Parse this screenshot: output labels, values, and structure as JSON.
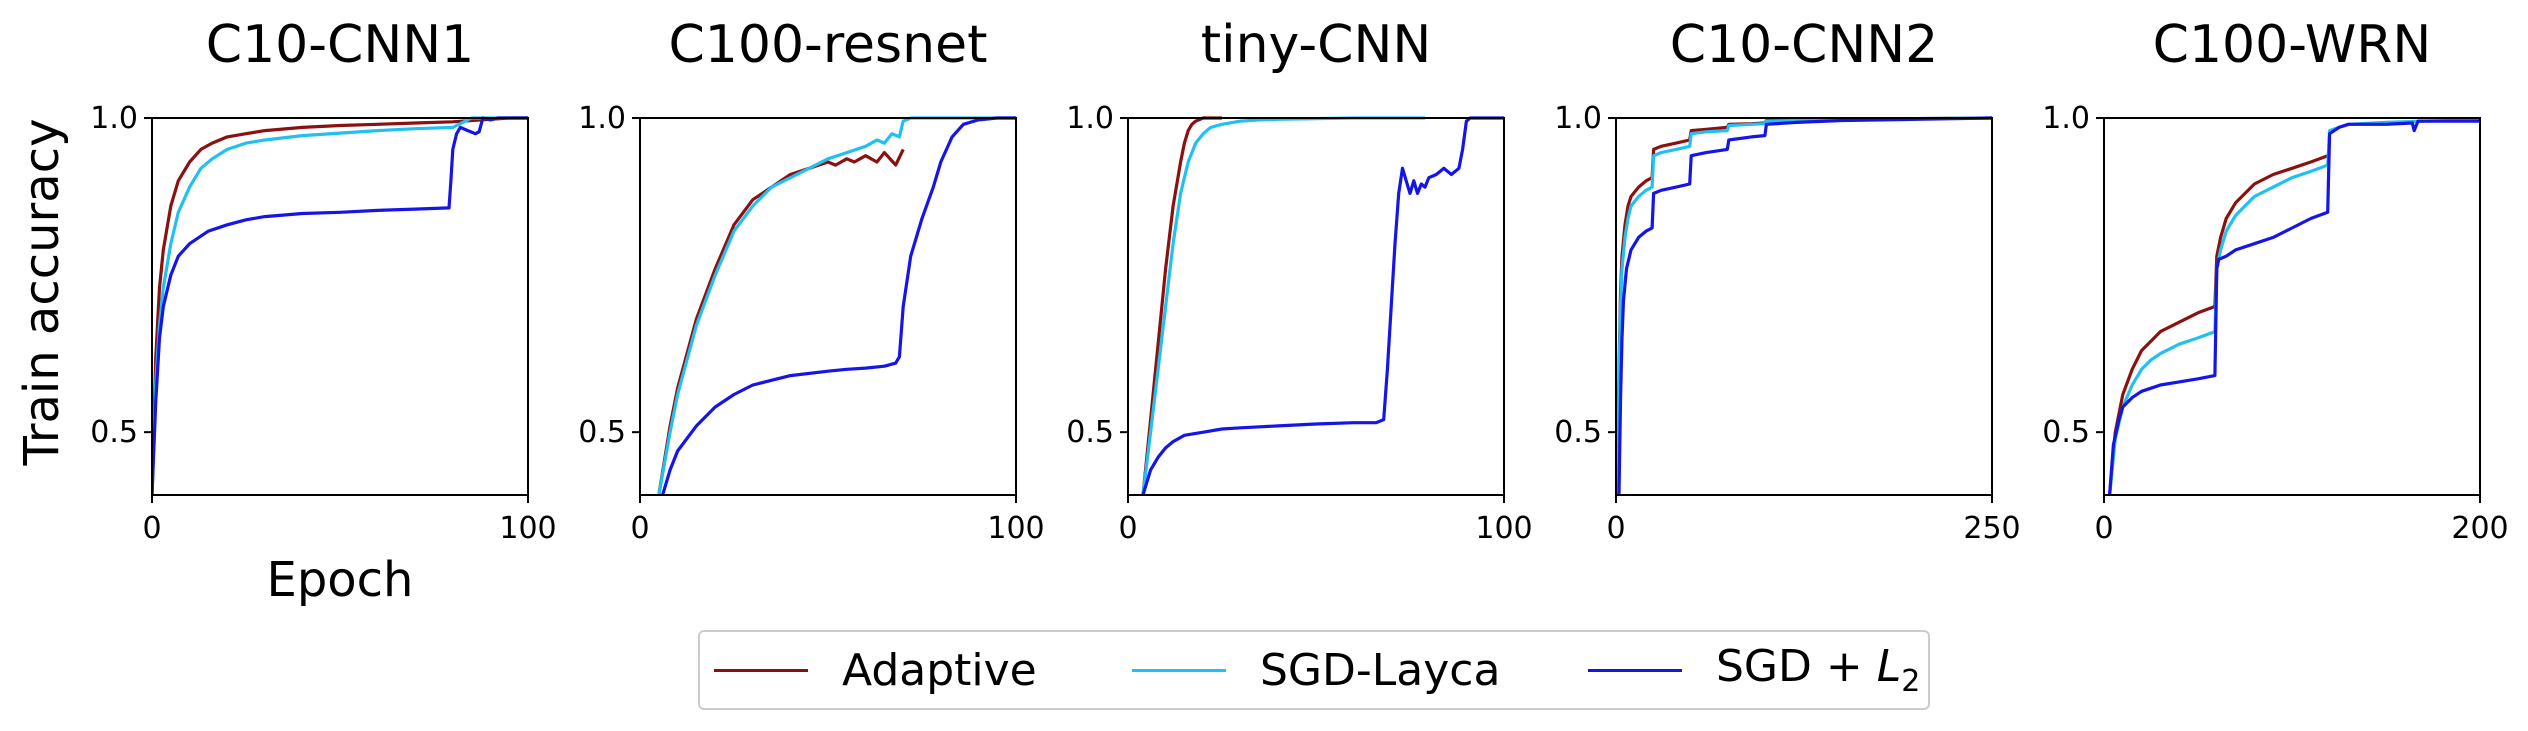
{
  "figure": {
    "ylabel": "Train accuracy",
    "xlabel": "Epoch"
  },
  "legend": [
    {
      "label": "Adaptive",
      "color": "#8b1111"
    },
    {
      "label": "SGD-Layca",
      "color": "#22c0f0"
    },
    {
      "label": "SGD + L",
      "sub": "2",
      "color": "#1515e8"
    }
  ],
  "chart_data": [
    {
      "type": "line",
      "title": "C10-CNN1",
      "xlim": [
        0,
        100
      ],
      "ylim": [
        0.4,
        1.0
      ],
      "xticks": [
        "0",
        "100"
      ],
      "yticks": [
        "0.5",
        "1.0"
      ],
      "ytick_values": [
        0.5,
        1.0
      ],
      "xtick_values": [
        0,
        100
      ],
      "series": [
        {
          "name": "Adaptive",
          "color": "#8b1111",
          "x": [
            0,
            1,
            2,
            3,
            5,
            7,
            10,
            13,
            16,
            20,
            25,
            30,
            40,
            50,
            60,
            70,
            80,
            85,
            90,
            95,
            100
          ],
          "y": [
            0.4,
            0.62,
            0.73,
            0.79,
            0.86,
            0.9,
            0.93,
            0.95,
            0.96,
            0.97,
            0.975,
            0.98,
            0.985,
            0.988,
            0.99,
            0.992,
            0.994,
            0.996,
            0.998,
            1.0,
            1.0
          ]
        },
        {
          "name": "SGD-Layca",
          "color": "#22c0f0",
          "x": [
            0,
            1,
            2,
            3,
            5,
            7,
            10,
            13,
            16,
            20,
            25,
            30,
            40,
            50,
            60,
            70,
            80,
            85,
            90,
            100
          ],
          "y": [
            0.4,
            0.58,
            0.67,
            0.73,
            0.8,
            0.85,
            0.89,
            0.92,
            0.935,
            0.95,
            0.96,
            0.965,
            0.972,
            0.976,
            0.98,
            0.983,
            0.985,
            1.0,
            1.0,
            1.0
          ]
        },
        {
          "name": "SGD + L2",
          "color": "#1515e8",
          "x": [
            0,
            1,
            2,
            3,
            5,
            7,
            10,
            15,
            20,
            25,
            30,
            40,
            50,
            60,
            70,
            79,
            79.5,
            80,
            81,
            82,
            84,
            86,
            87,
            88,
            90,
            92,
            95,
            100
          ],
          "y": [
            0.4,
            0.55,
            0.65,
            0.7,
            0.75,
            0.78,
            0.8,
            0.82,
            0.83,
            0.838,
            0.843,
            0.848,
            0.85,
            0.853,
            0.855,
            0.857,
            0.9,
            0.95,
            0.975,
            0.985,
            0.98,
            0.975,
            0.978,
            1.0,
            0.997,
            1.0,
            1.0,
            1.0
          ]
        }
      ]
    },
    {
      "type": "line",
      "title": "C100-resnet",
      "xlim": [
        0,
        100
      ],
      "ylim": [
        0.4,
        1.0
      ],
      "xticks": [
        "0",
        "100"
      ],
      "yticks": [
        "0.5",
        "1.0"
      ],
      "ytick_values": [
        0.5,
        1.0
      ],
      "xtick_values": [
        0,
        100
      ],
      "series": [
        {
          "name": "Adaptive",
          "color": "#8b1111",
          "x": [
            5,
            8,
            10,
            15,
            20,
            25,
            30,
            35,
            40,
            45,
            50,
            52,
            55,
            57,
            60,
            63,
            65,
            68,
            70
          ],
          "y": [
            0.4,
            0.51,
            0.57,
            0.68,
            0.76,
            0.83,
            0.87,
            0.89,
            0.91,
            0.92,
            0.93,
            0.925,
            0.935,
            0.93,
            0.94,
            0.93,
            0.945,
            0.925,
            0.95
          ]
        },
        {
          "name": "SGD-Layca",
          "color": "#22c0f0",
          "x": [
            5,
            8,
            10,
            15,
            20,
            25,
            30,
            35,
            40,
            45,
            50,
            55,
            60,
            63,
            65,
            67,
            69,
            70,
            72,
            75,
            80,
            90,
            100
          ],
          "y": [
            0.4,
            0.5,
            0.56,
            0.67,
            0.75,
            0.82,
            0.86,
            0.89,
            0.905,
            0.92,
            0.935,
            0.945,
            0.955,
            0.965,
            0.96,
            0.975,
            0.97,
            0.995,
            1.0,
            1.0,
            1.0,
            1.0,
            1.0
          ]
        },
        {
          "name": "SGD + L2",
          "color": "#1515e8",
          "x": [
            6,
            8,
            10,
            15,
            20,
            25,
            30,
            40,
            50,
            55,
            60,
            65,
            68,
            69,
            70,
            72,
            75,
            78,
            80,
            83,
            86,
            90,
            95,
            100
          ],
          "y": [
            0.4,
            0.44,
            0.47,
            0.51,
            0.54,
            0.56,
            0.575,
            0.59,
            0.597,
            0.6,
            0.602,
            0.605,
            0.61,
            0.62,
            0.7,
            0.78,
            0.84,
            0.89,
            0.93,
            0.97,
            0.99,
            0.997,
            1.0,
            1.0
          ]
        }
      ]
    },
    {
      "type": "line",
      "title": "tiny-CNN",
      "xlim": [
        0,
        100
      ],
      "ylim": [
        0.4,
        1.0
      ],
      "xticks": [
        "0",
        "100"
      ],
      "yticks": [
        "0.5",
        "1.0"
      ],
      "ytick_values": [
        0.5,
        1.0
      ],
      "xtick_values": [
        0,
        100
      ],
      "series": [
        {
          "name": "Adaptive",
          "color": "#8b1111",
          "x": [
            4,
            6,
            8,
            10,
            12,
            14,
            15,
            16,
            17,
            18,
            20,
            25
          ],
          "y": [
            0.4,
            0.52,
            0.64,
            0.76,
            0.86,
            0.93,
            0.96,
            0.98,
            0.99,
            0.995,
            1.0,
            1.0
          ]
        },
        {
          "name": "SGD-Layca",
          "color": "#22c0f0",
          "x": [
            4,
            6,
            8,
            10,
            12,
            14,
            16,
            18,
            20,
            22,
            25,
            30,
            35,
            40,
            50,
            60,
            70,
            79
          ],
          "y": [
            0.4,
            0.5,
            0.6,
            0.7,
            0.8,
            0.88,
            0.93,
            0.96,
            0.975,
            0.985,
            0.99,
            0.995,
            0.997,
            0.998,
            0.999,
            1.0,
            1.0,
            1.0
          ]
        },
        {
          "name": "SGD + L2",
          "color": "#1515e8",
          "x": [
            4,
            5,
            6,
            8,
            10,
            12,
            15,
            20,
            25,
            30,
            40,
            50,
            60,
            66,
            68,
            69,
            70,
            71,
            72,
            73,
            74,
            75,
            76,
            77,
            78,
            79,
            80,
            82,
            84,
            86,
            88,
            89,
            90,
            91,
            92,
            100
          ],
          "y": [
            0.4,
            0.42,
            0.44,
            0.46,
            0.475,
            0.485,
            0.495,
            0.5,
            0.505,
            0.507,
            0.51,
            0.513,
            0.515,
            0.515,
            0.52,
            0.6,
            0.7,
            0.8,
            0.88,
            0.92,
            0.9,
            0.88,
            0.9,
            0.88,
            0.895,
            0.89,
            0.905,
            0.91,
            0.92,
            0.91,
            0.92,
            0.95,
            0.995,
            1.0,
            1.0,
            1.0
          ]
        }
      ]
    },
    {
      "type": "line",
      "title": "C10-CNN2",
      "xlim": [
        0,
        250
      ],
      "ylim": [
        0.4,
        1.0
      ],
      "xticks": [
        "0",
        "250"
      ],
      "yticks": [
        "0.5",
        "1.0"
      ],
      "ytick_values": [
        0.5,
        1.0
      ],
      "xtick_values": [
        0,
        250
      ],
      "series": [
        {
          "name": "Adaptive",
          "color": "#8b1111",
          "x": [
            1,
            2,
            3,
            4,
            6,
            8,
            10,
            15,
            20,
            24,
            25,
            30,
            40,
            49,
            50,
            60,
            74,
            75,
            90,
            99,
            100,
            120,
            150,
            200,
            250
          ],
          "y": [
            0.4,
            0.6,
            0.72,
            0.78,
            0.83,
            0.86,
            0.875,
            0.89,
            0.9,
            0.905,
            0.95,
            0.955,
            0.96,
            0.965,
            0.98,
            0.982,
            0.985,
            0.99,
            0.991,
            0.992,
            0.996,
            0.997,
            0.998,
            0.999,
            1.0
          ]
        },
        {
          "name": "SGD-Layca",
          "color": "#22c0f0",
          "x": [
            1,
            2,
            3,
            4,
            6,
            8,
            10,
            15,
            20,
            24,
            25,
            30,
            40,
            49,
            50,
            60,
            74,
            75,
            90,
            99,
            100,
            120,
            150,
            200,
            250
          ],
          "y": [
            0.4,
            0.58,
            0.7,
            0.76,
            0.81,
            0.84,
            0.86,
            0.875,
            0.885,
            0.89,
            0.94,
            0.945,
            0.95,
            0.955,
            0.975,
            0.978,
            0.98,
            0.988,
            0.99,
            0.991,
            0.995,
            0.996,
            0.998,
            0.999,
            1.0
          ]
        },
        {
          "name": "SGD + L2",
          "color": "#1515e8",
          "x": [
            2,
            3,
            4,
            5,
            7,
            10,
            15,
            20,
            24,
            25,
            30,
            40,
            49,
            50,
            60,
            74,
            75,
            90,
            99,
            100,
            120,
            150,
            200,
            250
          ],
          "y": [
            0.4,
            0.55,
            0.65,
            0.71,
            0.76,
            0.79,
            0.81,
            0.82,
            0.825,
            0.88,
            0.885,
            0.89,
            0.895,
            0.94,
            0.945,
            0.95,
            0.965,
            0.97,
            0.972,
            0.99,
            0.993,
            0.996,
            0.998,
            1.0
          ]
        }
      ]
    },
    {
      "type": "line",
      "title": "C100-WRN",
      "xlim": [
        0,
        200
      ],
      "ylim": [
        0.4,
        1.0
      ],
      "xticks": [
        "0",
        "200"
      ],
      "yticks": [
        "0.5",
        "1.0"
      ],
      "ytick_values": [
        0.5,
        1.0
      ],
      "xtick_values": [
        0,
        200
      ],
      "series": [
        {
          "name": "Adaptive",
          "color": "#8b1111",
          "x": [
            3,
            6,
            10,
            15,
            20,
            25,
            30,
            40,
            50,
            59,
            60,
            62,
            65,
            70,
            80,
            90,
            100,
            110,
            119
          ],
          "y": [
            0.4,
            0.5,
            0.56,
            0.6,
            0.63,
            0.645,
            0.66,
            0.675,
            0.69,
            0.7,
            0.78,
            0.81,
            0.84,
            0.865,
            0.895,
            0.91,
            0.92,
            0.93,
            0.94
          ]
        },
        {
          "name": "SGD-Layca",
          "color": "#22c0f0",
          "x": [
            3,
            6,
            10,
            15,
            20,
            25,
            30,
            40,
            50,
            59,
            60,
            62,
            65,
            70,
            80,
            90,
            100,
            110,
            119,
            120,
            125,
            130,
            150,
            170,
            200
          ],
          "y": [
            0.4,
            0.49,
            0.54,
            0.575,
            0.6,
            0.615,
            0.625,
            0.64,
            0.65,
            0.66,
            0.76,
            0.79,
            0.82,
            0.845,
            0.875,
            0.89,
            0.905,
            0.915,
            0.925,
            0.98,
            0.985,
            0.99,
            0.993,
            0.995,
            0.997
          ]
        },
        {
          "name": "SGD + L2",
          "color": "#1515e8",
          "x": [
            3,
            5,
            8,
            10,
            15,
            20,
            25,
            30,
            40,
            50,
            59,
            60,
            61,
            65,
            70,
            80,
            90,
            100,
            110,
            119,
            120,
            125,
            130,
            150,
            164,
            165,
            167,
            170,
            180,
            200
          ],
          "y": [
            0.4,
            0.48,
            0.52,
            0.54,
            0.555,
            0.565,
            0.57,
            0.575,
            0.58,
            0.585,
            0.59,
            0.76,
            0.775,
            0.78,
            0.79,
            0.8,
            0.81,
            0.825,
            0.84,
            0.85,
            0.975,
            0.985,
            0.99,
            0.99,
            0.992,
            0.98,
            0.995,
            0.995,
            0.995,
            0.995
          ]
        }
      ]
    }
  ]
}
